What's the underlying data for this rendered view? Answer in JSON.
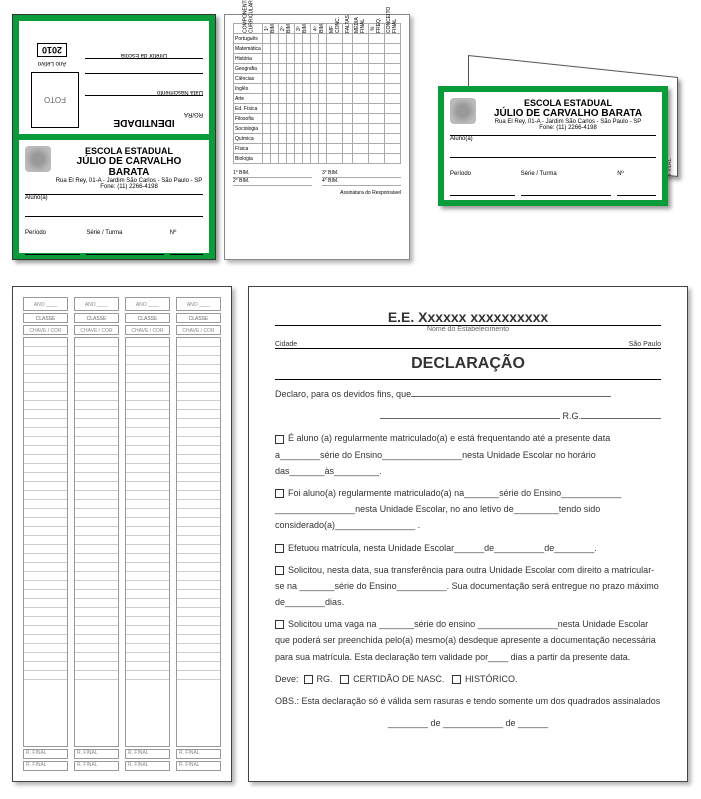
{
  "colors": {
    "green": "#0a9b3a"
  },
  "idcard": {
    "school_line1": "ESCOLA ESTADUAL",
    "school_line2": "JÚLIO DE CARVALHO BARATA",
    "address": "Rua El Rey, 01-A - Jardim São Carlos - São Paulo - SP",
    "phone": "Fone: (11) 2266-4198",
    "aluno_label": "Aluno(a)",
    "periodo_label": "Período",
    "serie_label": "Série / Turma",
    "num_label": "Nº",
    "identidade": "IDENTIDADE",
    "rgra": "RG/RA",
    "nasc": "Data Nascimento",
    "foto": "FOTO",
    "ano": "Ano Letivo",
    "year": "2010",
    "diretor": "Diretor da Escola"
  },
  "gridcard": {
    "col_left_label": "COMPONENTE CURRICULAR",
    "rows": [
      "Português",
      "Matemática",
      "História",
      "Geografia",
      "Ciências",
      "Inglês",
      "Arte",
      "Ed. Física",
      "Filosofia",
      "Sociologia",
      "Química",
      "Física",
      "Biologia"
    ],
    "col_groups": [
      "1º BIM.",
      "2º BIM.",
      "3º BIM.",
      "4º BIM."
    ],
    "col_extra": [
      "MF CONC.",
      "FALTAS",
      "MÉDIA FINAL",
      "% FREQ.",
      "CONCEITO FINAL"
    ],
    "footer_rows": [
      "1° BIM.",
      "2° BIM.",
      "3° BIM.",
      "4° BIM."
    ],
    "sig": "Assinatura do Responsável"
  },
  "folded": {
    "school_line1": "ESCOLA ESTADUAL",
    "school_line2": "JÚLIO DE CARVALHO BARATA",
    "address": "Rua El Rey, 01-A - Jardim São Carlos - São Paulo - SP",
    "phone": "Fone: (11) 2266-4198",
    "aluno": "Aluno(a)",
    "periodo": "Período",
    "serie": "Série / Turma",
    "num": "Nº",
    "back_labels": [
      "CONCEITO",
      "FINAL"
    ]
  },
  "listsheet": {
    "hdr1": "ANO ____ CLASSE",
    "hdr2": "CLASSE",
    "hdr3": "CHAVE / COR",
    "footer": "R. FINAL",
    "rows_count": 38,
    "cols": 4
  },
  "decl": {
    "title": "E.E. Xxxxxx xxxxxxxxxx",
    "sub": "Nome do Estabelecimento",
    "cidade": "Cidade",
    "estado": "São Paulo",
    "heading": "DECLARAÇÃO",
    "intro": "Declaro, para os devidos fins, que",
    "rg": "R.G.",
    "opt1": "É aluno (a) regularmente matriculado(a) e está frequentando até a presente data a________série do Ensino________________nesta Unidade Escolar no horário das_______às_________.",
    "opt2": "Foi aluno(a) regularmente matriculado(a) na_______série do Ensino____________ ________________nesta Unidade Escolar, no ano letivo de_________tendo sido considerado(a)________________ .",
    "opt3": "Efetuou matrícula, nesta Unidade Escolar______de__________de________.",
    "opt4": "Solicitou, nesta data, sua transferência para outra Unidade Escolar com direito a matricular-se na _______série do Ensino__________. Sua documentação será entregue no prazo máximo de________dias.",
    "opt5": "Solicitou uma vaga na _______série do ensino ________________nesta Unidade Escolar que poderá ser preenchida pelo(a) mesmo(a) desdeque apresente a documentação necessária para sua matrícula. Esta declaração tem validade por____ dias a partir da presente data.",
    "deve": "Deve:",
    "d1": "RG.",
    "d2": "CERTIDÃO DE NASC.",
    "d3": "HISTÓRICO.",
    "obs": "OBS.: Esta declaração só é válida sem rasuras e tendo somente um dos quadrados assinalados",
    "footdate": "________ de ____________ de ______"
  }
}
